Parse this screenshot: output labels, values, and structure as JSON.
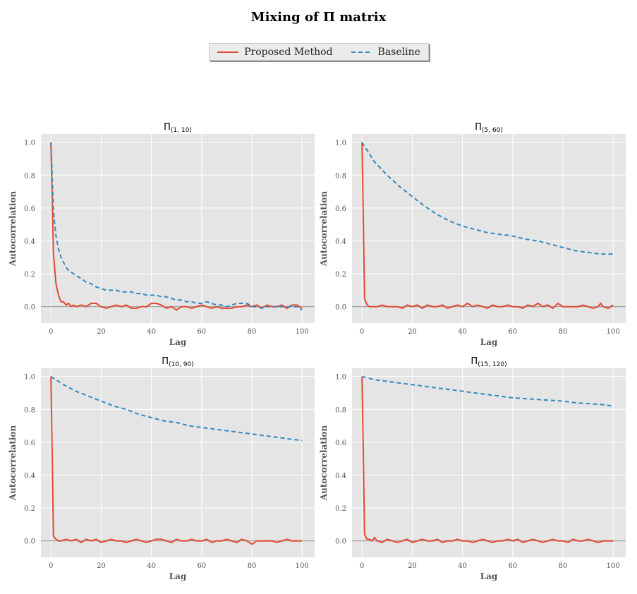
{
  "figure": {
    "title": "Mixing of Π matrix",
    "colors": {
      "proposed": "#e24a33",
      "baseline": "#348abd",
      "panel_bg": "#e5e5e5",
      "grid": "#ffffff",
      "zero_line": "#999999"
    }
  },
  "legend": {
    "placement": "top-center",
    "items": [
      {
        "label": "Proposed Method",
        "style": "solid",
        "color": "#e24a33"
      },
      {
        "label": "Baseline",
        "style": "dashed",
        "color": "#348abd"
      }
    ]
  },
  "chart_data": [
    {
      "type": "line",
      "title": "Π",
      "title_sub": "(1, 10)",
      "xlabel": "Lag",
      "ylabel": "Autocorrelation",
      "xlim": [
        -4,
        105
      ],
      "ylim": [
        -0.1,
        1.05
      ],
      "xticks": [
        0,
        20,
        40,
        60,
        80,
        100
      ],
      "xtick_labels": [
        "0",
        "20",
        "40",
        "60",
        "80",
        "100"
      ],
      "yticks": [
        0.0,
        0.2,
        0.4,
        0.6,
        0.8,
        1.0
      ],
      "ytick_labels": [
        "0.0",
        "0.2",
        "0.4",
        "0.6",
        "0.8",
        "1.0"
      ],
      "grid": true,
      "series": [
        {
          "name": "Proposed Method",
          "x": [
            0,
            1,
            2,
            3,
            4,
            5,
            6,
            7,
            8,
            9,
            10,
            12,
            14,
            16,
            18,
            20,
            22,
            24,
            26,
            28,
            30,
            32,
            34,
            36,
            38,
            40,
            42,
            44,
            46,
            48,
            50,
            52,
            54,
            56,
            58,
            60,
            62,
            64,
            66,
            68,
            70,
            72,
            74,
            76,
            78,
            80,
            82,
            84,
            86,
            88,
            90,
            92,
            94,
            96,
            98,
            100
          ],
          "y": [
            1.0,
            0.32,
            0.14,
            0.07,
            0.03,
            0.03,
            0.01,
            0.02,
            0.0,
            0.01,
            0.0,
            0.01,
            0.0,
            0.02,
            0.02,
            0.0,
            -0.01,
            0.0,
            0.01,
            0.0,
            0.01,
            -0.01,
            -0.01,
            0.0,
            0.0,
            0.02,
            0.02,
            0.01,
            -0.01,
            0.0,
            -0.02,
            0.0,
            0.0,
            -0.01,
            0.0,
            0.01,
            0.0,
            -0.01,
            0.0,
            -0.01,
            -0.01,
            -0.01,
            0.0,
            0.0,
            0.01,
            0.0,
            0.01,
            -0.01,
            0.01,
            0.0,
            0.0,
            0.01,
            -0.01,
            0.01,
            0.01,
            -0.01
          ]
        },
        {
          "name": "Baseline",
          "x": [
            0,
            1,
            2,
            3,
            4,
            5,
            6,
            7,
            8,
            9,
            10,
            12,
            14,
            16,
            18,
            20,
            22,
            24,
            26,
            28,
            30,
            32,
            34,
            36,
            38,
            40,
            42,
            44,
            46,
            48,
            50,
            52,
            54,
            56,
            58,
            60,
            62,
            64,
            66,
            68,
            70,
            72,
            74,
            76,
            78,
            80,
            82,
            84,
            86,
            88,
            90,
            92,
            94,
            96,
            98,
            100
          ],
          "y": [
            1.0,
            0.58,
            0.43,
            0.35,
            0.3,
            0.27,
            0.24,
            0.22,
            0.21,
            0.2,
            0.19,
            0.17,
            0.15,
            0.14,
            0.12,
            0.11,
            0.1,
            0.1,
            0.1,
            0.09,
            0.09,
            0.09,
            0.08,
            0.08,
            0.07,
            0.07,
            0.07,
            0.06,
            0.06,
            0.05,
            0.04,
            0.04,
            0.03,
            0.03,
            0.02,
            0.02,
            0.03,
            0.02,
            0.01,
            0.01,
            0.0,
            0.01,
            0.02,
            0.02,
            0.02,
            0.0,
            0.0,
            -0.01,
            0.0,
            0.0,
            0.0,
            0.0,
            0.0,
            0.0,
            0.0,
            -0.02
          ]
        }
      ]
    },
    {
      "type": "line",
      "title": "Π",
      "title_sub": "(5, 60)",
      "xlabel": "Lag",
      "ylabel": "Autocorrelation",
      "xlim": [
        -4,
        105
      ],
      "ylim": [
        -0.1,
        1.05
      ],
      "xticks": [
        0,
        20,
        40,
        60,
        80,
        100
      ],
      "xtick_labels": [
        "0",
        "20",
        "40",
        "60",
        "80",
        "100"
      ],
      "yticks": [
        0.0,
        0.2,
        0.4,
        0.6,
        0.8,
        1.0
      ],
      "ytick_labels": [
        "0.0",
        "0.2",
        "0.4",
        "0.6",
        "0.8",
        "1.0"
      ],
      "grid": true,
      "series": [
        {
          "name": "Proposed Method",
          "x": [
            0,
            1,
            2,
            3,
            4,
            6,
            8,
            10,
            12,
            14,
            16,
            18,
            20,
            22,
            24,
            26,
            28,
            30,
            32,
            34,
            36,
            38,
            40,
            42,
            44,
            46,
            48,
            50,
            52,
            54,
            56,
            58,
            60,
            62,
            64,
            66,
            68,
            70,
            72,
            74,
            76,
            78,
            80,
            82,
            84,
            86,
            88,
            90,
            92,
            94,
            95,
            96,
            98,
            100
          ],
          "y": [
            1.0,
            0.05,
            0.01,
            0.0,
            0.0,
            0.0,
            0.01,
            0.0,
            0.0,
            0.0,
            -0.01,
            0.01,
            0.0,
            0.01,
            -0.01,
            0.01,
            0.0,
            0.0,
            0.01,
            -0.01,
            0.0,
            0.01,
            0.0,
            0.02,
            0.0,
            0.01,
            0.0,
            -0.01,
            0.01,
            0.0,
            0.0,
            0.01,
            0.0,
            0.0,
            -0.01,
            0.01,
            0.0,
            0.02,
            0.0,
            0.01,
            -0.01,
            0.02,
            0.0,
            0.0,
            0.0,
            0.0,
            0.01,
            0.0,
            -0.01,
            0.0,
            0.02,
            0.0,
            -0.01,
            0.01
          ]
        },
        {
          "name": "Baseline",
          "x": [
            0,
            5,
            10,
            15,
            20,
            25,
            30,
            35,
            40,
            45,
            50,
            55,
            60,
            65,
            70,
            75,
            80,
            85,
            90,
            95,
            100
          ],
          "y": [
            1.0,
            0.88,
            0.8,
            0.73,
            0.67,
            0.61,
            0.56,
            0.52,
            0.49,
            0.47,
            0.45,
            0.44,
            0.43,
            0.41,
            0.4,
            0.38,
            0.36,
            0.34,
            0.33,
            0.32,
            0.32
          ]
        }
      ]
    },
    {
      "type": "line",
      "title": "Π",
      "title_sub": "(10, 90)",
      "xlabel": "Lag",
      "ylabel": "Autocorrelation",
      "xlim": [
        -4,
        105
      ],
      "ylim": [
        -0.1,
        1.05
      ],
      "xticks": [
        0,
        20,
        40,
        60,
        80,
        100
      ],
      "xtick_labels": [
        "0",
        "20",
        "40",
        "60",
        "80",
        "100"
      ],
      "yticks": [
        0.0,
        0.2,
        0.4,
        0.6,
        0.8,
        1.0
      ],
      "ytick_labels": [
        "0.0",
        "0.2",
        "0.4",
        "0.6",
        "0.8",
        "1.0"
      ],
      "grid": true,
      "series": [
        {
          "name": "Proposed Method",
          "x": [
            0,
            1,
            2,
            3,
            4,
            6,
            8,
            10,
            12,
            14,
            16,
            18,
            20,
            22,
            24,
            26,
            28,
            30,
            32,
            34,
            36,
            38,
            40,
            42,
            44,
            46,
            48,
            50,
            52,
            54,
            56,
            58,
            60,
            62,
            64,
            66,
            68,
            70,
            72,
            74,
            76,
            78,
            80,
            82,
            84,
            86,
            88,
            90,
            92,
            94,
            96,
            98,
            100
          ],
          "y": [
            1.0,
            0.03,
            0.01,
            0.0,
            0.0,
            0.01,
            0.0,
            0.01,
            -0.01,
            0.01,
            0.0,
            0.01,
            -0.01,
            0.0,
            0.01,
            0.0,
            0.0,
            -0.01,
            0.0,
            0.01,
            0.0,
            -0.01,
            0.0,
            0.01,
            0.01,
            0.0,
            -0.01,
            0.01,
            0.0,
            0.0,
            0.01,
            0.0,
            0.0,
            0.01,
            -0.01,
            0.0,
            0.0,
            0.01,
            0.0,
            -0.01,
            0.01,
            0.0,
            -0.02,
            0.0,
            0.0,
            0.0,
            0.0,
            -0.01,
            0.0,
            0.01,
            0.0,
            0.0,
            0.0
          ]
        },
        {
          "name": "Baseline",
          "x": [
            0,
            5,
            10,
            15,
            20,
            25,
            30,
            35,
            40,
            45,
            50,
            55,
            60,
            65,
            70,
            75,
            80,
            85,
            90,
            95,
            100
          ],
          "y": [
            1.0,
            0.95,
            0.91,
            0.88,
            0.85,
            0.82,
            0.8,
            0.77,
            0.75,
            0.73,
            0.72,
            0.7,
            0.69,
            0.68,
            0.67,
            0.66,
            0.65,
            0.64,
            0.63,
            0.62,
            0.61
          ]
        }
      ]
    },
    {
      "type": "line",
      "title": "Π",
      "title_sub": "(15, 120)",
      "xlabel": "Lag",
      "ylabel": "Autocorrelation",
      "xlim": [
        -4,
        105
      ],
      "ylim": [
        -0.1,
        1.05
      ],
      "xticks": [
        0,
        20,
        40,
        60,
        80,
        100
      ],
      "xtick_labels": [
        "0",
        "20",
        "40",
        "60",
        "80",
        "100"
      ],
      "yticks": [
        0.0,
        0.2,
        0.4,
        0.6,
        0.8,
        1.0
      ],
      "ytick_labels": [
        "0.0",
        "0.2",
        "0.4",
        "0.6",
        "0.8",
        "1.0"
      ],
      "grid": true,
      "series": [
        {
          "name": "Proposed Method",
          "x": [
            0,
            1,
            2,
            3,
            4,
            5,
            6,
            8,
            10,
            12,
            14,
            16,
            18,
            20,
            22,
            24,
            26,
            28,
            30,
            32,
            34,
            36,
            38,
            40,
            42,
            44,
            46,
            48,
            50,
            52,
            54,
            56,
            58,
            60,
            62,
            64,
            66,
            68,
            70,
            72,
            74,
            76,
            78,
            80,
            82,
            84,
            86,
            88,
            90,
            92,
            94,
            96,
            98,
            100
          ],
          "y": [
            1.0,
            0.04,
            0.01,
            0.01,
            0.0,
            0.02,
            0.0,
            -0.01,
            0.01,
            0.0,
            -0.01,
            0.0,
            0.01,
            -0.01,
            0.0,
            0.01,
            0.0,
            0.0,
            0.01,
            -0.01,
            0.0,
            0.0,
            0.01,
            0.0,
            0.0,
            -0.01,
            0.0,
            0.01,
            0.0,
            -0.01,
            0.0,
            0.0,
            0.01,
            0.0,
            0.01,
            -0.01,
            0.0,
            0.01,
            0.0,
            -0.01,
            0.0,
            0.01,
            0.0,
            0.0,
            -0.01,
            0.01,
            0.0,
            0.0,
            0.01,
            0.0,
            -0.01,
            0.0,
            0.0,
            0.0
          ]
        },
        {
          "name": "Baseline",
          "x": [
            0,
            5,
            10,
            15,
            20,
            25,
            30,
            35,
            40,
            45,
            50,
            55,
            60,
            65,
            70,
            75,
            80,
            85,
            90,
            95,
            100
          ],
          "y": [
            1.0,
            0.98,
            0.97,
            0.96,
            0.95,
            0.94,
            0.93,
            0.92,
            0.91,
            0.9,
            0.89,
            0.88,
            0.87,
            0.865,
            0.86,
            0.855,
            0.85,
            0.84,
            0.835,
            0.83,
            0.82
          ]
        }
      ]
    }
  ]
}
